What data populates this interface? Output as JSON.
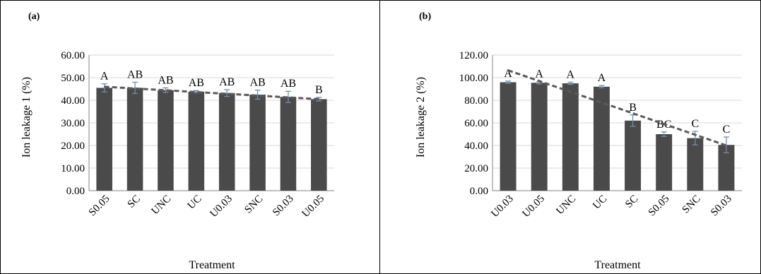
{
  "chart_data": [
    {
      "panel": "(a)",
      "type": "bar",
      "xlabel": "Treatment",
      "ylabel": "Ion leakage 1 (%)",
      "ylim": [
        0,
        60
      ],
      "yticks": [
        "0.00",
        "10.00",
        "20.00",
        "30.00",
        "40.00",
        "50.00",
        "60.00"
      ],
      "categories": [
        "S0.05",
        "SC",
        "UNC",
        "UC",
        "U0.03",
        "SNC",
        "S0.03",
        "U0.05"
      ],
      "values": [
        45.5,
        45.5,
        44.5,
        43.8,
        43.2,
        42.5,
        41.5,
        40.5
      ],
      "errors": [
        1.8,
        2.5,
        1.0,
        0.5,
        1.5,
        2.0,
        2.5,
        0.8
      ],
      "letters": [
        "A",
        "AB",
        "AB",
        "AB",
        "AB",
        "AB",
        "AB",
        "B"
      ],
      "trendline": [
        46.0,
        40.5
      ],
      "grid": "horizontal"
    },
    {
      "panel": "(b)",
      "type": "bar",
      "xlabel": "Treatment",
      "ylabel": "Ion leakage 2 (%)",
      "ylim": [
        0,
        120
      ],
      "yticks": [
        "0.00",
        "20.00",
        "40.00",
        "60.00",
        "80.00",
        "100.00",
        "120.00"
      ],
      "categories": [
        "U0.03",
        "U0.05",
        "UNC",
        "UC",
        "SC",
        "S0.05",
        "SNC",
        "S0.03"
      ],
      "values": [
        96,
        95.5,
        95,
        92,
        62,
        50,
        46.5,
        40.5
      ],
      "errors": [
        1.0,
        1.0,
        1.0,
        1.0,
        5.0,
        2.0,
        6.0,
        7.0
      ],
      "letters": [
        "A",
        "A",
        "A",
        "A",
        "B",
        "BC",
        "C",
        "C"
      ],
      "trendline": [
        106.5,
        40.0
      ],
      "grid": "horizontal"
    }
  ]
}
